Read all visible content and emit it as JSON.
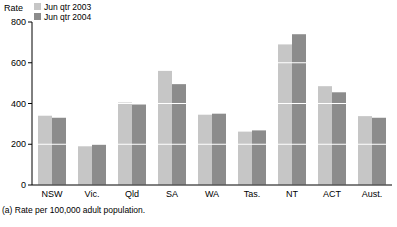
{
  "chart_data": {
    "type": "bar",
    "y_label": "Rate",
    "footnote": "(a) Rate per 100,000 adult population.",
    "categories": [
      "NSW",
      "Vic.",
      "Qld",
      "SA",
      "WA",
      "Tas.",
      "NT",
      "ACT",
      "Aust."
    ],
    "series": [
      {
        "name": "Jun qtr 2003",
        "color": "#c6c6c6",
        "values": [
          340,
          190,
          405,
          560,
          345,
          262,
          690,
          485,
          338
        ]
      },
      {
        "name": "Jun qtr 2004",
        "color": "#8c8c8c",
        "values": [
          330,
          200,
          395,
          495,
          350,
          268,
          740,
          455,
          330
        ]
      }
    ],
    "ylim": [
      0,
      800
    ],
    "yticks": [
      0,
      200,
      400,
      600,
      800
    ],
    "grid": true,
    "legend": "top-left"
  }
}
